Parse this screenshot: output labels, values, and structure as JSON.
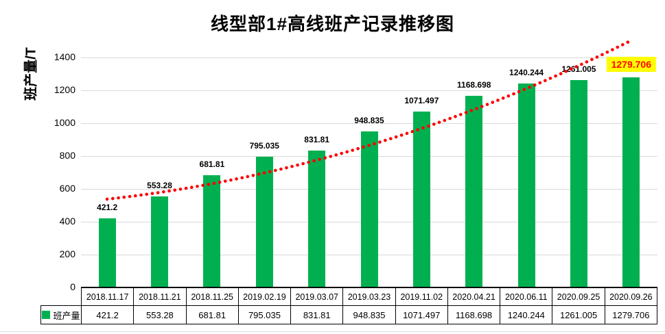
{
  "title": "线型部1#高线班产记录推移图",
  "y_axis": {
    "label": "班产量/T",
    "ticks": [
      0,
      200,
      400,
      600,
      800,
      1000,
      1200,
      1400
    ]
  },
  "legend": {
    "label": "班产量",
    "color": "#00B050"
  },
  "chart_data": {
    "type": "bar",
    "title": "线型部1#高线班产记录推移图",
    "xlabel": "",
    "ylabel": "班产量/T",
    "ylim": [
      0,
      1500
    ],
    "yticks": [
      0,
      200,
      400,
      600,
      800,
      1000,
      1200,
      1400
    ],
    "grid": true,
    "legend_position": "data-table-left",
    "data_table": true,
    "categories": [
      "2018.11.17",
      "2018.11.21",
      "2018.11.25",
      "2019.02.19",
      "2019.03.07",
      "2019.03.23",
      "2019.11.02",
      "2020.04.21",
      "2020.06.11",
      "2020.09.25",
      "2020.09.26"
    ],
    "series": [
      {
        "name": "班产量",
        "color": "#00B050",
        "values": [
          421.2,
          553.28,
          681.81,
          795.035,
          831.81,
          948.835,
          1071.497,
          1168.698,
          1240.244,
          1261.005,
          1279.706
        ]
      }
    ],
    "data_labels": [
      "421.2",
      "553.28",
      "681.81",
      "795.035",
      "831.81",
      "948.835",
      "1071.497",
      "1168.698",
      "1240.244",
      "1261.005",
      "1279.706"
    ],
    "highlighted_label": {
      "index": 10,
      "text": "1279.706",
      "background": "#FFFF00",
      "text_color": "#FF0000"
    },
    "trendline": {
      "shape": "exponential",
      "style": "dotted",
      "color": "#FF0000"
    }
  },
  "colors": {
    "bar": "#00B050",
    "trendline": "#FF0000",
    "gridline": "#D9D9D9",
    "axis": "#000000",
    "highlight_bg": "#FFFF00",
    "highlight_text": "#FF0000",
    "table_border": "#000000"
  }
}
